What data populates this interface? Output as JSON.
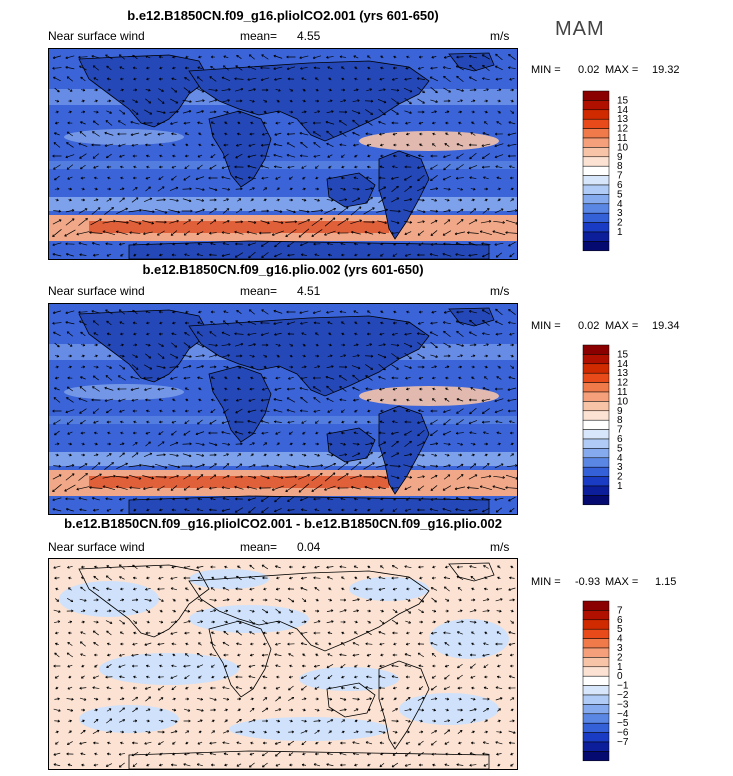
{
  "season": "MAM",
  "panels": [
    {
      "title": "b.e12.B1850CN.f09_g16.pliolCO2.001 (yrs 601-650)",
      "variable": "Near surface wind",
      "mean_label": "mean=",
      "mean_value": "4.55",
      "units": "m/s",
      "min_label": "MIN =",
      "min_value": "0.02",
      "max_label": "MAX =",
      "max_value": "19.32",
      "colorbar_labels": [
        "15",
        "14",
        "13",
        "12",
        "11",
        "10",
        "9",
        "8",
        "7",
        "6",
        "5",
        "4",
        "3",
        "2",
        "1"
      ],
      "colorbar_colors": [
        "#8a0000",
        "#b01000",
        "#d02a00",
        "#e84a1a",
        "#f07a4a",
        "#f5a07a",
        "#f8c4a8",
        "#fbe2d2",
        "#ffffff",
        "#d8e6fb",
        "#b0cbf5",
        "#86aaee",
        "#5a86e4",
        "#3460d8",
        "#1a3cc4",
        "#0c1e9a",
        "#050a70"
      ]
    },
    {
      "title": "b.e12.B1850CN.f09_g16.plio.002 (yrs 601-650)",
      "variable": "Near surface wind",
      "mean_label": "mean=",
      "mean_value": "4.51",
      "units": "m/s",
      "min_label": "MIN =",
      "min_value": "0.02",
      "max_label": "MAX =",
      "max_value": "19.34",
      "colorbar_labels": [
        "15",
        "14",
        "13",
        "12",
        "11",
        "10",
        "9",
        "8",
        "7",
        "6",
        "5",
        "4",
        "3",
        "2",
        "1"
      ],
      "colorbar_colors": [
        "#8a0000",
        "#b01000",
        "#d02a00",
        "#e84a1a",
        "#f07a4a",
        "#f5a07a",
        "#f8c4a8",
        "#fbe2d2",
        "#ffffff",
        "#d8e6fb",
        "#b0cbf5",
        "#86aaee",
        "#5a86e4",
        "#3460d8",
        "#1a3cc4",
        "#0c1e9a",
        "#050a70"
      ]
    },
    {
      "title": "b.e12.B1850CN.f09_g16.pliolCO2.001 - b.e12.B1850CN.f09_g16.plio.002",
      "variable": "Near surface wind",
      "mean_label": "mean=",
      "mean_value": "0.04",
      "units": "m/s",
      "min_label": "MIN =",
      "min_value": "-0.93",
      "max_label": "MAX =",
      "max_value": "1.15",
      "colorbar_labels": [
        "7",
        "6",
        "5",
        "4",
        "3",
        "2",
        "1",
        "0",
        "−1",
        "−2",
        "−3",
        "−4",
        "−5",
        "−6",
        "−7"
      ],
      "colorbar_colors": [
        "#8a0000",
        "#b01000",
        "#d02a00",
        "#e84a1a",
        "#f07a4a",
        "#f5a07a",
        "#f8c4a8",
        "#fbe2d2",
        "#ffffff",
        "#d8e6fb",
        "#b0cbf5",
        "#86aaee",
        "#5a86e4",
        "#3460d8",
        "#1a3cc4",
        "#0c1e9a",
        "#050a70"
      ]
    }
  ]
}
